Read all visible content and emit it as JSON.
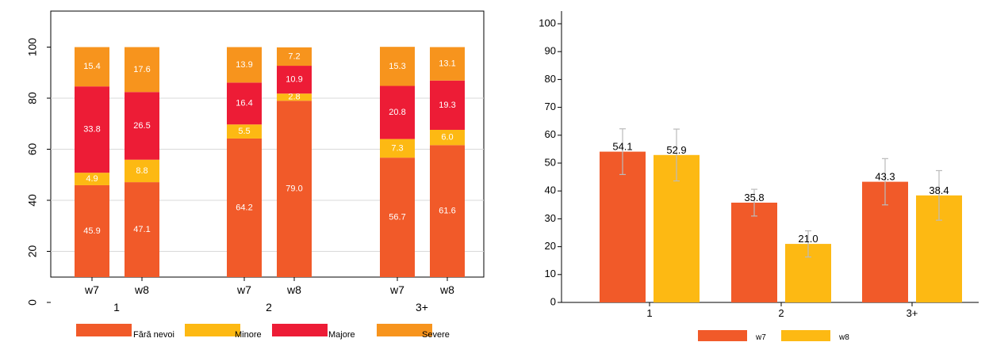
{
  "colors": {
    "fara_nevoi": "#F15A29",
    "minore": "#FDB913",
    "majore": "#ED1C36",
    "severe": "#F7941D",
    "w7": "#F15A29",
    "w8": "#FDB913",
    "error_bar": "#BBBBBB",
    "axis": "#000000",
    "grid": "#D9D9D9"
  },
  "chart_data": [
    {
      "type": "bar",
      "stacked": true,
      "groups": [
        "1",
        "2",
        "3+"
      ],
      "categories": [
        "w7",
        "w8",
        "w7",
        "w8",
        "w7",
        "w8"
      ],
      "y_ticks": [
        "0",
        "20",
        "40",
        "60",
        "80",
        "100"
      ],
      "ylim": [
        0,
        100
      ],
      "grid": true,
      "legend_position": "bottom",
      "series": [
        {
          "name": "Fără nevoi",
          "values": [
            45.9,
            47.1,
            64.2,
            79.0,
            56.7,
            61.6
          ],
          "labels": [
            "45.9",
            "47.1",
            "64.2",
            "79.0",
            "56.7",
            "61.6"
          ]
        },
        {
          "name": "Minore",
          "values": [
            4.9,
            8.8,
            5.5,
            2.8,
            7.3,
            6.0
          ],
          "labels": [
            "4.9",
            "8.8",
            "5.5",
            "2.8",
            "7.3",
            "6.0"
          ]
        },
        {
          "name": "Majore",
          "values": [
            33.8,
            26.5,
            16.4,
            10.9,
            20.8,
            19.3
          ],
          "labels": [
            "33.8",
            "26.5",
            "16.4",
            "10.9",
            "20.8",
            "19.3"
          ]
        },
        {
          "name": "Severe",
          "values": [
            15.4,
            17.6,
            13.9,
            7.2,
            15.3,
            13.1
          ],
          "labels": [
            "15.4",
            "17.6",
            "13.9",
            "7.2",
            "15.3",
            "13.1"
          ]
        }
      ]
    },
    {
      "type": "bar",
      "categories": [
        "1",
        "2",
        "3+"
      ],
      "y_ticks": [
        "0",
        "10",
        "20",
        "30",
        "40",
        "50",
        "60",
        "70",
        "80",
        "90",
        "100"
      ],
      "ylim": [
        0,
        100
      ],
      "grid": false,
      "legend_position": "bottom",
      "series": [
        {
          "name": "w7",
          "values": [
            54.1,
            35.8,
            43.3
          ],
          "labels": [
            "54.1",
            "35.8",
            "43.3"
          ],
          "error_low": [
            45.9,
            31.0,
            35.0
          ],
          "error_high": [
            62.3,
            40.6,
            51.6
          ]
        },
        {
          "name": "w8",
          "values": [
            52.9,
            21.0,
            38.4
          ],
          "labels": [
            "52.9",
            "21.0",
            "38.4"
          ],
          "error_low": [
            43.6,
            16.3,
            29.5
          ],
          "error_high": [
            62.2,
            25.7,
            47.3
          ]
        }
      ]
    }
  ]
}
